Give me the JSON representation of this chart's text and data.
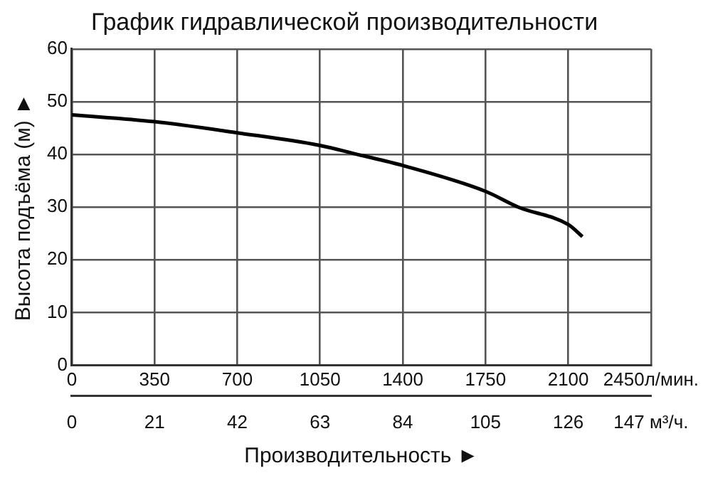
{
  "chart_data": {
    "type": "line",
    "title": "График гидравлической производительности",
    "xlabel": "Производительность ►",
    "ylabel": "Высота подъёма (м) ►",
    "x": [
      0,
      350,
      700,
      1050,
      1208,
      1400,
      1750,
      1889,
      2100,
      2160
    ],
    "series": [
      {
        "color": "#000000",
        "values": [
          47.5,
          46.2,
          44.1,
          41.7,
          40,
          37.9,
          33,
          30,
          26.7,
          24.4
        ]
      }
    ],
    "xlim": [
      0,
      2450
    ],
    "xticks": [
      0,
      350,
      700,
      1050,
      1400,
      1750,
      2100,
      {
        "value": 2450,
        "label": "2450л/мин."
      }
    ],
    "x2lim": [
      0,
      147
    ],
    "x2ticks": [
      0,
      21,
      42,
      63,
      84,
      105,
      126,
      {
        "value": 147,
        "label": "147 м³/ч."
      }
    ],
    "ylim": [
      0,
      60
    ],
    "yticks": [
      0,
      10,
      20,
      30,
      40,
      50,
      60
    ],
    "grid": true,
    "legend": false,
    "marker": "none",
    "line_style": "solid"
  }
}
